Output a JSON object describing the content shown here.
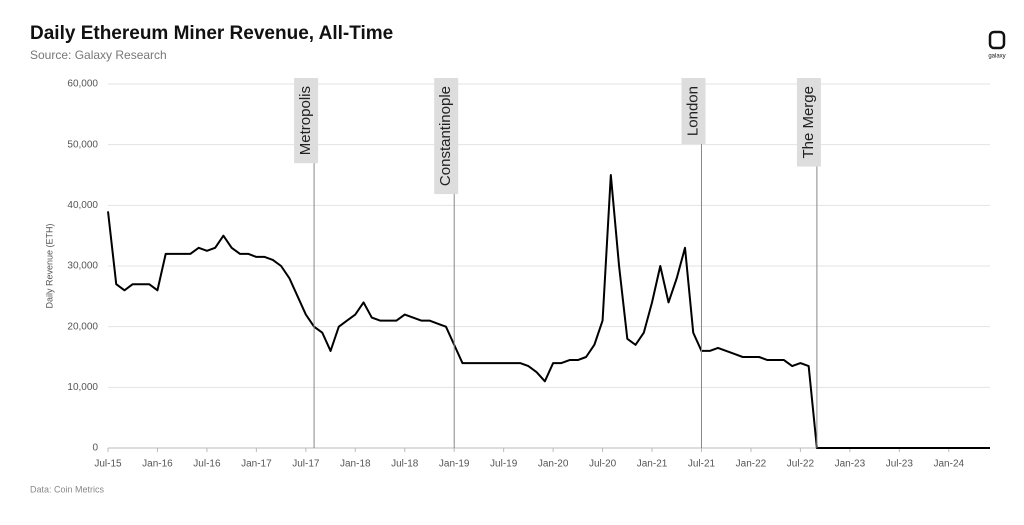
{
  "header": {
    "logo": "galaxy"
  },
  "footer": {
    "source": "Data: Coin Metrics"
  },
  "chart_data": {
    "type": "line",
    "title": "Daily Ethereum Miner Revenue, All-Time",
    "subtitle": "Source: Galaxy Research",
    "y_label": "Daily Revenue (ETH)",
    "ylim": [
      0,
      60000
    ],
    "yticks": [
      0,
      {
        "value": 10000,
        "label": "10,000"
      },
      {
        "value": 20000,
        "label": "20,000"
      },
      {
        "value": 30000,
        "label": "30,000"
      },
      {
        "value": 40000,
        "label": "40,000"
      },
      {
        "value": 50000,
        "label": "50,000"
      },
      {
        "value": 60000,
        "label": "60,000"
      }
    ],
    "xlim": [
      "2015-07",
      "2024-06"
    ],
    "xticks": [
      {
        "value": "2015-07",
        "label": "Jul-15"
      },
      {
        "value": "2016-01",
        "label": "Jan-16"
      },
      {
        "value": "2016-07",
        "label": "Jul-16"
      },
      {
        "value": "2017-01",
        "label": "Jan-17"
      },
      {
        "value": "2017-07",
        "label": "Jul-17"
      },
      {
        "value": "2018-01",
        "label": "Jan-18"
      },
      {
        "value": "2018-07",
        "label": "Jul-18"
      },
      {
        "value": "2019-01",
        "label": "Jan-19"
      },
      {
        "value": "2019-07",
        "label": "Jul-19"
      },
      {
        "value": "2020-01",
        "label": "Jan-20"
      },
      {
        "value": "2020-07",
        "label": "Jul-20"
      },
      {
        "value": "2021-01",
        "label": "Jan-21"
      },
      {
        "value": "2021-07",
        "label": "Jul-21"
      },
      {
        "value": "2022-01",
        "label": "Jan-22"
      },
      {
        "value": "2022-07",
        "label": "Jul-22"
      },
      {
        "value": "2023-01",
        "label": "Jan-23"
      },
      {
        "value": "2023-07",
        "label": "Jul-23"
      },
      {
        "value": "2024-01",
        "label": "Jan-24"
      }
    ],
    "grid": true,
    "annotations": [
      {
        "x": "2017-08",
        "label": "Metropolis"
      },
      {
        "x": "2019-01",
        "label": "Constantinople"
      },
      {
        "x": "2021-07",
        "label": "London"
      },
      {
        "x": "2022-09",
        "label": "The Merge"
      }
    ],
    "x": [
      "2015-07",
      "2015-08",
      "2015-09",
      "2015-10",
      "2015-11",
      "2015-12",
      "2016-01",
      "2016-02",
      "2016-03",
      "2016-04",
      "2016-05",
      "2016-06",
      "2016-07",
      "2016-08",
      "2016-09",
      "2016-10",
      "2016-11",
      "2016-12",
      "2017-01",
      "2017-02",
      "2017-03",
      "2017-04",
      "2017-05",
      "2017-06",
      "2017-07",
      "2017-08",
      "2017-09",
      "2017-10",
      "2017-11",
      "2017-12",
      "2018-01",
      "2018-02",
      "2018-03",
      "2018-04",
      "2018-05",
      "2018-06",
      "2018-07",
      "2018-08",
      "2018-09",
      "2018-10",
      "2018-11",
      "2018-12",
      "2019-01",
      "2019-02",
      "2019-03",
      "2019-04",
      "2019-05",
      "2019-06",
      "2019-07",
      "2019-08",
      "2019-09",
      "2019-10",
      "2019-11",
      "2019-12",
      "2020-01",
      "2020-02",
      "2020-03",
      "2020-04",
      "2020-05",
      "2020-06",
      "2020-07",
      "2020-08",
      "2020-09",
      "2020-10",
      "2020-11",
      "2020-12",
      "2021-01",
      "2021-02",
      "2021-03",
      "2021-04",
      "2021-05",
      "2021-06",
      "2021-07",
      "2021-08",
      "2021-09",
      "2021-10",
      "2021-11",
      "2021-12",
      "2022-01",
      "2022-02",
      "2022-03",
      "2022-04",
      "2022-05",
      "2022-06",
      "2022-07",
      "2022-08",
      "2022-09",
      "2022-10",
      "2022-11",
      "2022-12",
      "2023-01",
      "2023-02",
      "2023-03",
      "2023-04",
      "2023-05",
      "2023-06",
      "2023-07",
      "2023-08",
      "2023-09",
      "2023-10",
      "2023-11",
      "2023-12",
      "2024-01",
      "2024-02",
      "2024-03",
      "2024-04",
      "2024-05",
      "2024-06"
    ],
    "series": [
      {
        "name": "Daily Revenue",
        "color": "#000000",
        "values": [
          39000,
          27000,
          26000,
          27000,
          27000,
          27000,
          26000,
          32000,
          32000,
          32000,
          32000,
          33000,
          32500,
          33000,
          35000,
          33000,
          32000,
          32000,
          31500,
          31500,
          31000,
          30000,
          28000,
          25000,
          22000,
          20000,
          19000,
          16000,
          20000,
          21000,
          22000,
          24000,
          21500,
          21000,
          21000,
          21000,
          22000,
          21500,
          21000,
          21000,
          20500,
          20000,
          17000,
          14000,
          14000,
          14000,
          14000,
          14000,
          14000,
          14000,
          14000,
          13500,
          12500,
          11000,
          14000,
          14000,
          14500,
          14500,
          15000,
          17000,
          21000,
          45000,
          30000,
          18000,
          17000,
          19000,
          24000,
          30000,
          24000,
          28000,
          33000,
          19000,
          16000,
          16000,
          16500,
          16000,
          15500,
          15000,
          15000,
          15000,
          14500,
          14500,
          14500,
          13500,
          14000,
          13500,
          0,
          0,
          0,
          0,
          0,
          0,
          0,
          0,
          0,
          0,
          0,
          0,
          0,
          0,
          0,
          0,
          0,
          0,
          0,
          0,
          0,
          0
        ]
      }
    ]
  }
}
